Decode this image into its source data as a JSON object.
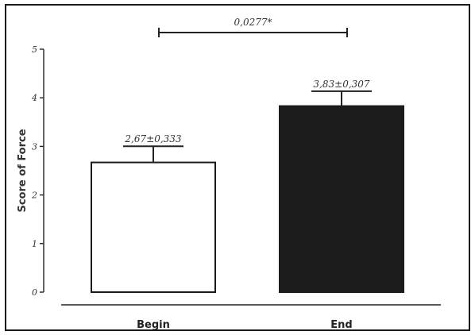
{
  "chart_data": {
    "type": "bar",
    "categories": [
      "Begin",
      "End"
    ],
    "values": [
      2.67,
      3.83
    ],
    "errors": [
      0.333,
      0.307
    ],
    "data_labels": [
      "2,67±0,333",
      "3,83±0,307"
    ],
    "bar_colors": [
      "#ffffff",
      "#1c1c1c"
    ],
    "bar_edge_color": "#1a1a1a",
    "ylabel": "Score of Force",
    "xlabel": "",
    "ylim": [
      0,
      5
    ],
    "yticks": [
      0,
      1,
      2,
      3,
      4,
      5
    ],
    "ytick_labels": [
      "0",
      "1",
      "2",
      "3",
      "4",
      "5"
    ],
    "significance": {
      "label": "0,0277*",
      "between": [
        "Begin",
        "End"
      ]
    },
    "grid": false,
    "legend": "none"
  }
}
